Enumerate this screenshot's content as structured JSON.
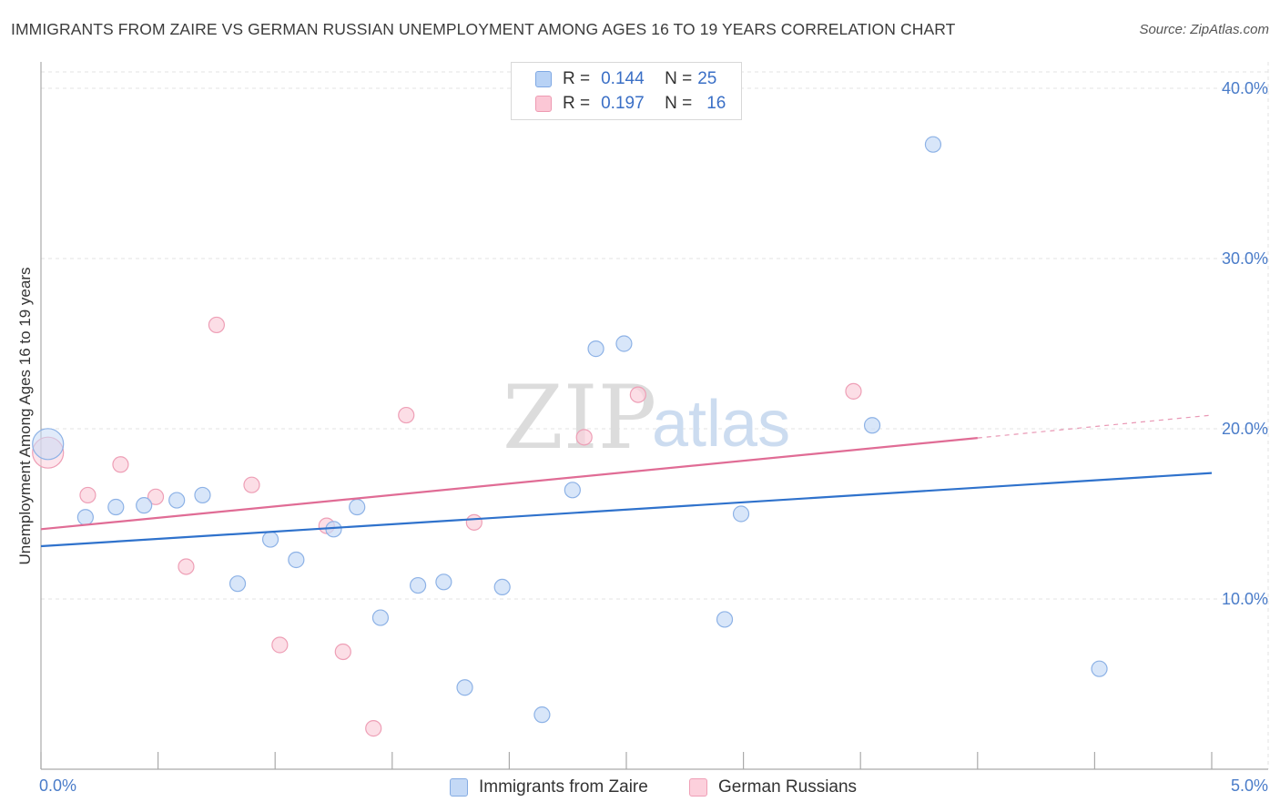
{
  "header": {
    "title": "IMMIGRANTS FROM ZAIRE VS GERMAN RUSSIAN UNEMPLOYMENT AMONG AGES 16 TO 19 YEARS CORRELATION CHART",
    "source": "Source: ZipAtlas.com"
  },
  "legend": {
    "series1": {
      "r_label": "R =",
      "r_value": "0.144",
      "n_label": "N =",
      "n_value": "25"
    },
    "series2": {
      "r_label": "R =",
      "r_value": "0.197",
      "n_label": "N =",
      "n_value": "16"
    }
  },
  "bottom_legend": {
    "series1": "Immigrants from Zaire",
    "series2": "German Russians"
  },
  "watermark": {
    "zip": "ZIP",
    "atlas": "atlas"
  },
  "colors": {
    "blue_fill": "#c8dbf6",
    "blue_stroke": "#8db2e6",
    "blue_line": "#2f72cc",
    "pink_fill": "#fbd0dc",
    "pink_stroke": "#ee9fb6",
    "pink_line": "#e06c95",
    "tick_text": "#4a7cc9",
    "grid": "#e3e3e3"
  },
  "chart_data": {
    "type": "scatter",
    "title": "IMMIGRANTS FROM ZAIRE VS GERMAN RUSSIAN UNEMPLOYMENT AMONG AGES 16 TO 19 YEARS CORRELATION CHART",
    "xlabel": "",
    "ylabel": "Unemployment Among Ages 16 to 19 years",
    "xlim": [
      0,
      5
    ],
    "ylim": [
      0,
      40
    ],
    "x_tick_labels": [
      "0.0%",
      "5.0%"
    ],
    "y_ticks": [
      10,
      20,
      30,
      40
    ],
    "y_tick_labels": [
      "10.0%",
      "20.0%",
      "30.0%",
      "40.0%"
    ],
    "grid": true,
    "legend_position": "top-center",
    "series": [
      {
        "name": "Immigrants from Zaire",
        "r": 0.144,
        "n": 25,
        "trend": {
          "x0": 0,
          "y0": 13.1,
          "x1": 5,
          "y1": 17.4,
          "dashed_from": null
        },
        "points": [
          {
            "x": 0.03,
            "y": 19.1,
            "big": true
          },
          {
            "x": 0.19,
            "y": 14.8
          },
          {
            "x": 0.32,
            "y": 15.4
          },
          {
            "x": 0.44,
            "y": 15.5
          },
          {
            "x": 0.58,
            "y": 15.8
          },
          {
            "x": 0.69,
            "y": 16.1
          },
          {
            "x": 0.84,
            "y": 10.9
          },
          {
            "x": 0.98,
            "y": 13.5
          },
          {
            "x": 1.09,
            "y": 12.3
          },
          {
            "x": 1.25,
            "y": 14.1
          },
          {
            "x": 1.35,
            "y": 15.4
          },
          {
            "x": 1.45,
            "y": 8.9
          },
          {
            "x": 1.61,
            "y": 10.8
          },
          {
            "x": 1.72,
            "y": 11.0
          },
          {
            "x": 1.81,
            "y": 4.8
          },
          {
            "x": 1.97,
            "y": 10.7
          },
          {
            "x": 2.14,
            "y": 3.2
          },
          {
            "x": 2.27,
            "y": 16.4
          },
          {
            "x": 2.37,
            "y": 24.7
          },
          {
            "x": 2.49,
            "y": 25.0
          },
          {
            "x": 2.92,
            "y": 8.8
          },
          {
            "x": 2.99,
            "y": 15.0
          },
          {
            "x": 3.55,
            "y": 20.2
          },
          {
            "x": 3.81,
            "y": 36.7
          },
          {
            "x": 4.52,
            "y": 5.9
          }
        ]
      },
      {
        "name": "German Russians",
        "r": 0.197,
        "n": 16,
        "trend": {
          "x0": 0,
          "y0": 14.1,
          "x1": 5,
          "y1": 20.8,
          "dashed_from": 4.0
        },
        "points": [
          {
            "x": 0.03,
            "y": 18.6,
            "big": true
          },
          {
            "x": 0.2,
            "y": 16.1
          },
          {
            "x": 0.34,
            "y": 17.9
          },
          {
            "x": 0.49,
            "y": 16.0
          },
          {
            "x": 0.62,
            "y": 11.9
          },
          {
            "x": 0.75,
            "y": 26.1
          },
          {
            "x": 0.9,
            "y": 16.7
          },
          {
            "x": 1.02,
            "y": 7.3
          },
          {
            "x": 1.22,
            "y": 14.3
          },
          {
            "x": 1.29,
            "y": 6.9
          },
          {
            "x": 1.42,
            "y": 2.4
          },
          {
            "x": 1.56,
            "y": 20.8
          },
          {
            "x": 1.85,
            "y": 14.5
          },
          {
            "x": 2.32,
            "y": 19.5
          },
          {
            "x": 2.55,
            "y": 22.0
          },
          {
            "x": 3.47,
            "y": 22.2
          }
        ]
      }
    ]
  }
}
